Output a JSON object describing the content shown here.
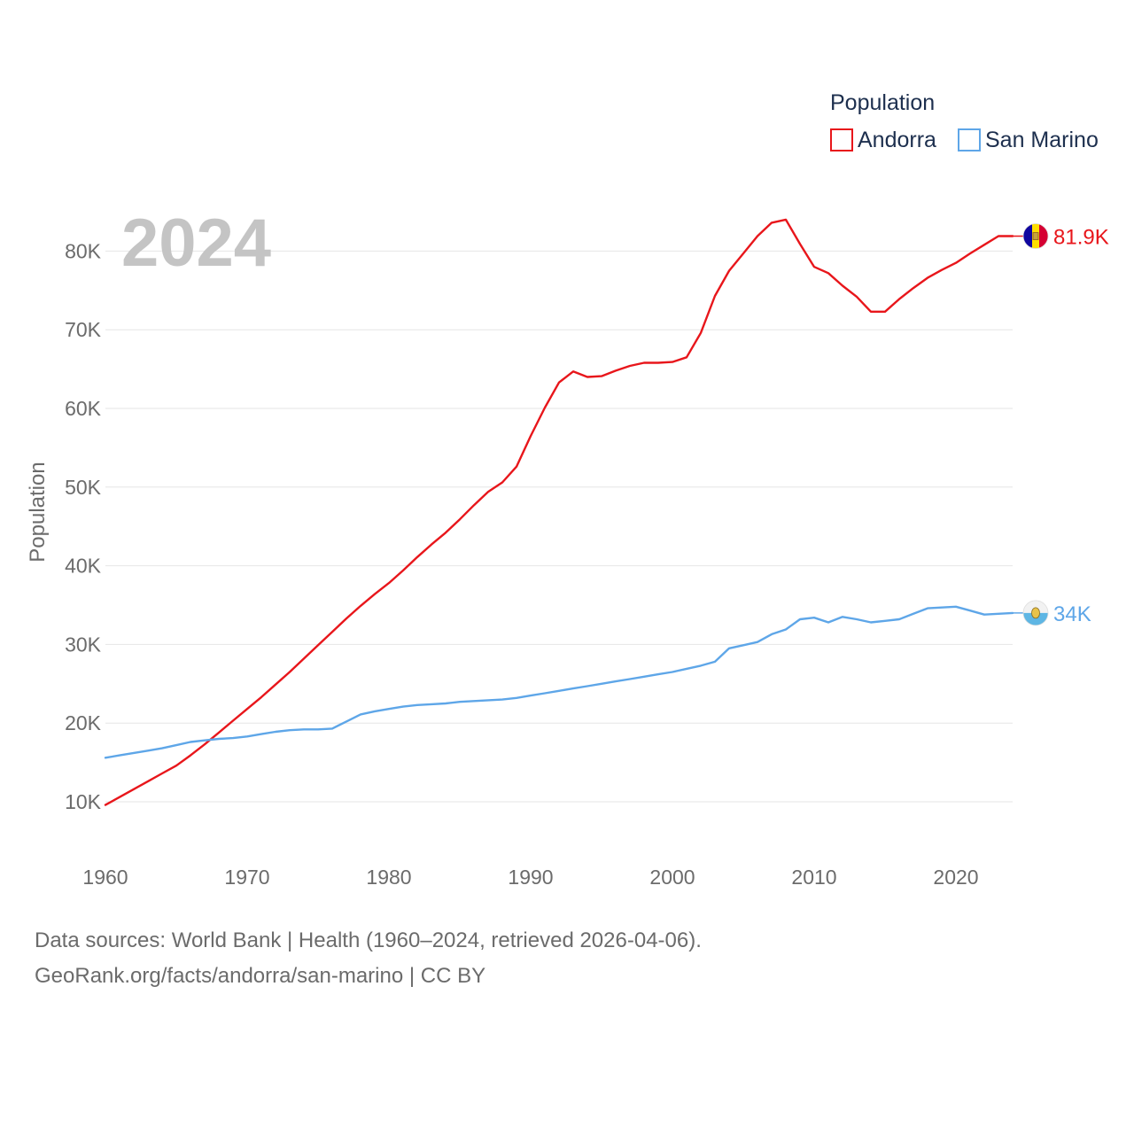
{
  "chart_data": {
    "type": "line",
    "title": "",
    "legend_title": "Population",
    "year_label": "2024",
    "xlabel": "",
    "ylabel": "Population",
    "xlim": [
      1960,
      2024
    ],
    "ylim": [
      5000,
      90000
    ],
    "x_ticks": [
      1960,
      1970,
      1980,
      1990,
      2000,
      2010,
      2020
    ],
    "x_tick_labels": [
      "1960",
      "1970",
      "1980",
      "1990",
      "2000",
      "2010",
      "2020"
    ],
    "y_ticks": [
      10000,
      20000,
      30000,
      40000,
      50000,
      60000,
      70000,
      80000
    ],
    "y_tick_labels": [
      "10K",
      "20K",
      "30K",
      "40K",
      "50K",
      "60K",
      "70K",
      "80K"
    ],
    "x": [
      1960,
      1961,
      1962,
      1963,
      1964,
      1965,
      1966,
      1967,
      1968,
      1969,
      1970,
      1971,
      1972,
      1973,
      1974,
      1975,
      1976,
      1977,
      1978,
      1979,
      1980,
      1981,
      1982,
      1983,
      1984,
      1985,
      1986,
      1987,
      1988,
      1989,
      1990,
      1991,
      1992,
      1993,
      1994,
      1995,
      1996,
      1997,
      1998,
      1999,
      2000,
      2001,
      2002,
      2003,
      2004,
      2005,
      2006,
      2007,
      2008,
      2009,
      2010,
      2011,
      2012,
      2013,
      2014,
      2015,
      2016,
      2017,
      2018,
      2019,
      2020,
      2021,
      2022,
      2023,
      2024
    ],
    "series": [
      {
        "name": "Andorra",
        "color": "#e8161b",
        "end_label": "81.9K",
        "flag": "andorra-flag-icon",
        "values": [
          9600,
          10600,
          11600,
          12600,
          13600,
          14600,
          15900,
          17300,
          18800,
          20300,
          21800,
          23300,
          24900,
          26500,
          28200,
          29900,
          31600,
          33300,
          34900,
          36400,
          37800,
          39400,
          41100,
          42700,
          44200,
          45900,
          47700,
          49400,
          50600,
          52600,
          56500,
          60100,
          63300,
          64700,
          64000,
          64100,
          64800,
          65400,
          65800,
          65800,
          65900,
          66500,
          69600,
          74300,
          77500,
          79700,
          81900,
          83600,
          84000,
          80900,
          78000,
          77200,
          75600,
          74200,
          72300,
          72300,
          73900,
          75300,
          76600,
          77600,
          78500,
          79700,
          80800,
          81900,
          81900
        ]
      },
      {
        "name": "San Marino",
        "color": "#5ea6e8",
        "end_label": "34K",
        "flag": "san-marino-flag-icon",
        "values": [
          15600,
          15900,
          16200,
          16500,
          16800,
          17200,
          17600,
          17800,
          18000,
          18100,
          18300,
          18600,
          18900,
          19100,
          19200,
          19200,
          19300,
          20200,
          21100,
          21500,
          21800,
          22100,
          22300,
          22400,
          22500,
          22700,
          22800,
          22900,
          23000,
          23200,
          23500,
          23800,
          24100,
          24400,
          24700,
          25000,
          25300,
          25600,
          25900,
          26200,
          26500,
          26900,
          27300,
          27800,
          29500,
          29900,
          30300,
          31300,
          31900,
          33200,
          33400,
          32800,
          33500,
          33200,
          32800,
          33000,
          33200,
          33900,
          34600,
          34700,
          34800,
          34300,
          33800,
          33900,
          34000
        ]
      }
    ]
  },
  "footer": {
    "line1": "Data sources: World Bank | Health (1960–2024, retrieved 2026-04-06).",
    "line2": "GeoRank.org/facts/andorra/san-marino | CC BY"
  }
}
